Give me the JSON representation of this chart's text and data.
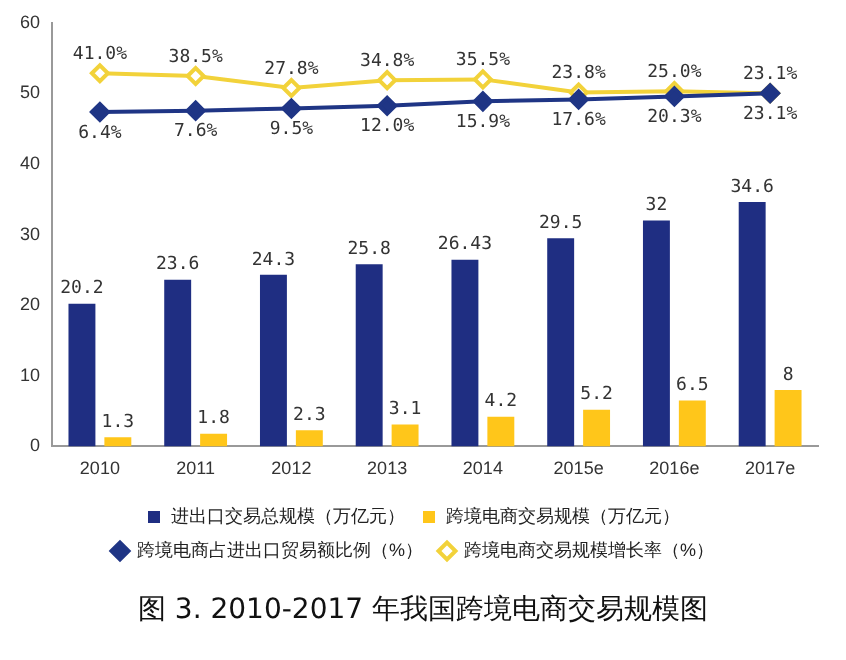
{
  "chart_data": {
    "type": "bar",
    "title": "图 3. 2010-2017 年我国跨境电商交易规模图",
    "categories": [
      "2010",
      "2011",
      "2012",
      "2013",
      "2014",
      "2015e",
      "2016e",
      "2017e"
    ],
    "series": [
      {
        "name": "进出口交易总规模（万亿元）",
        "color": "#1f2e82",
        "values": [
          20.2,
          23.6,
          24.3,
          25.8,
          26.43,
          29.5,
          32,
          34.6
        ],
        "value_labels": [
          "20.2",
          "23.6",
          "24.3",
          "25.8",
          "26.43",
          "29.5",
          "32",
          "34.6"
        ]
      },
      {
        "name": "跨境电商交易规模（万亿元）",
        "color": "#ffc61a",
        "values": [
          1.3,
          1.8,
          2.3,
          3.1,
          4.2,
          5.2,
          6.5,
          8
        ],
        "value_labels": [
          "1.3",
          "1.8",
          "2.3",
          "3.1",
          "4.2",
          "5.2",
          "6.5",
          "8"
        ]
      },
      {
        "name": "跨境电商占进出口贸易额比例（%）",
        "type": "line",
        "axis": "y2",
        "color": "#1f3585",
        "values": [
          6.4,
          7.6,
          9.5,
          12.0,
          15.9,
          17.6,
          20.3,
          23.1
        ],
        "value_labels": [
          "6.4%",
          "7.6%",
          "9.5%",
          "12.0%",
          "15.9%",
          "17.6%",
          "20.3%",
          "23.1%"
        ]
      },
      {
        "name": "跨境电商交易规模增长率（%）",
        "type": "line",
        "axis": "y2",
        "color": "#f2d23a",
        "values": [
          41.0,
          38.5,
          27.8,
          34.8,
          35.5,
          23.8,
          25.0,
          23.1
        ],
        "value_labels": [
          "41.0%",
          "38.5%",
          "27.8%",
          "34.8%",
          "35.5%",
          "23.8%",
          "25.0%",
          "23.1%"
        ]
      }
    ],
    "ylim": [
      0,
      60
    ],
    "yticks": [
      0,
      10,
      20,
      30,
      40,
      50,
      60
    ],
    "y2lim": [
      -292,
      86
    ],
    "tick_labels": "xy",
    "marker": "diamond",
    "legend": "bottom",
    "grid": false
  }
}
